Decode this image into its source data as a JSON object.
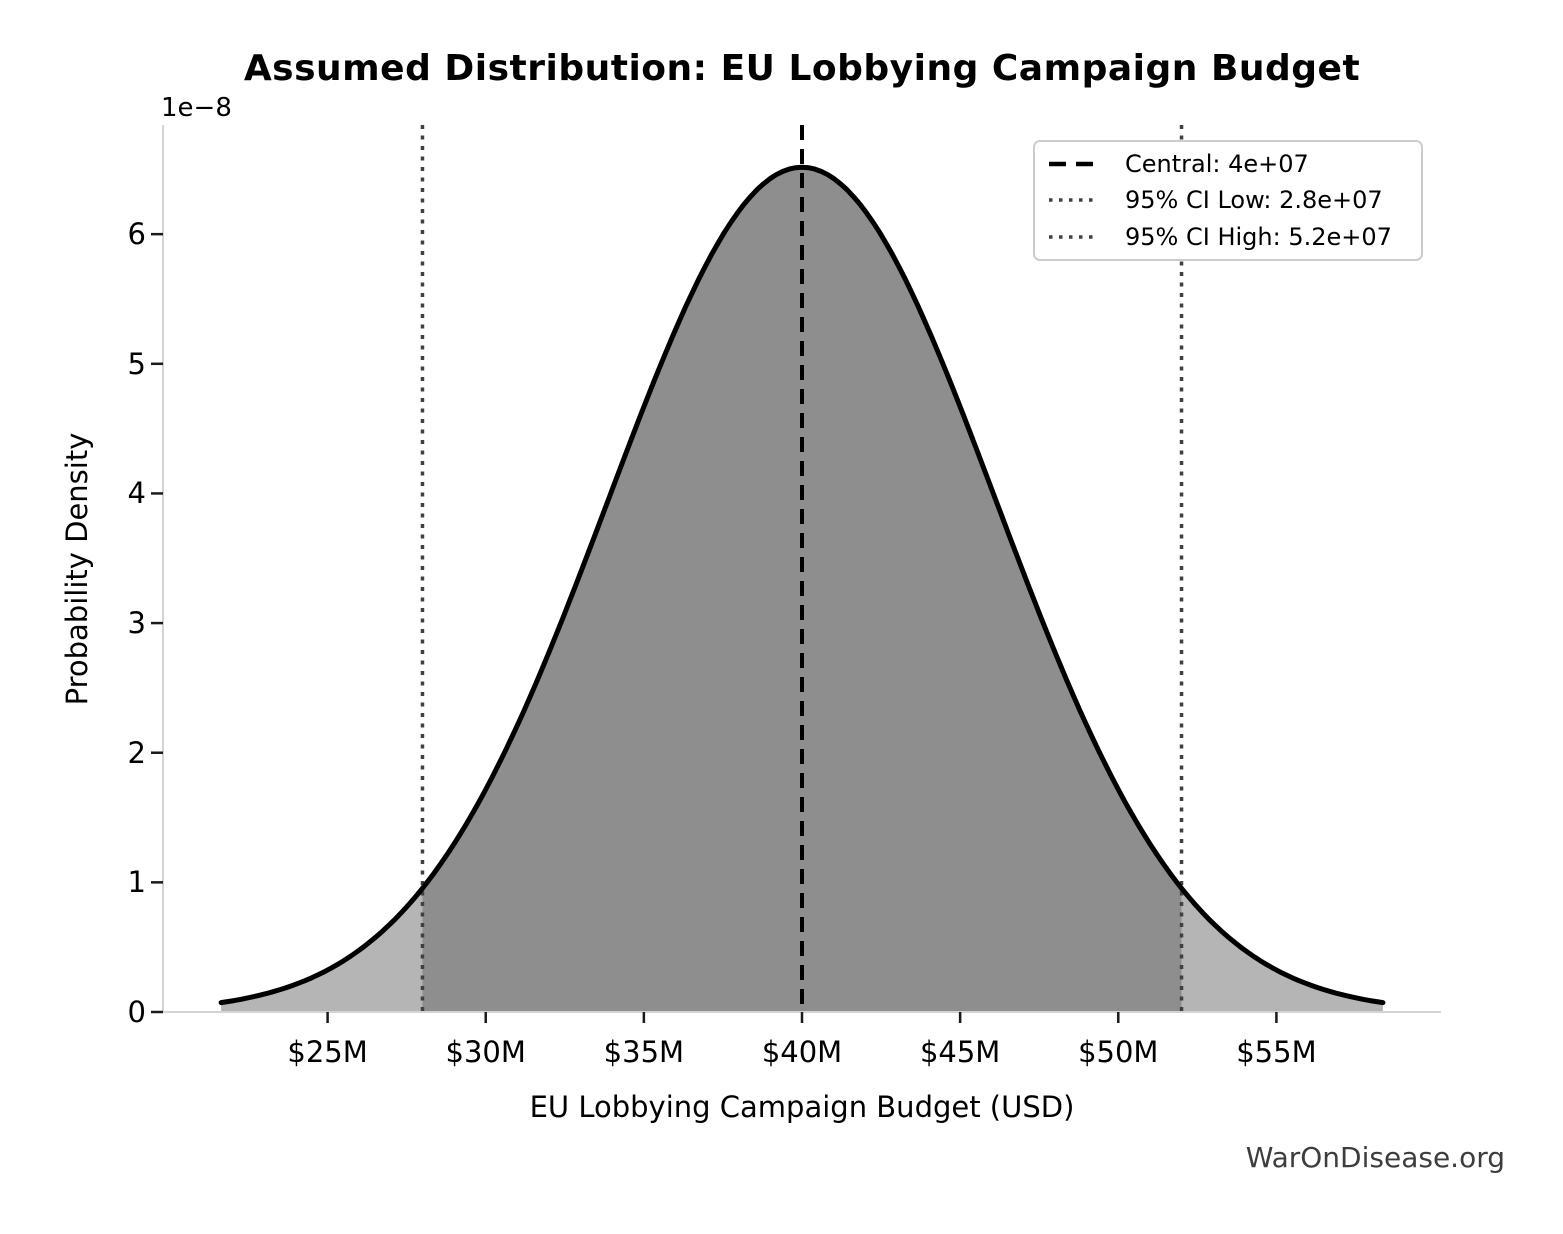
{
  "chart_data": {
    "type": "area",
    "subtype": "normal_distribution_pdf",
    "title": "Assumed Distribution: EU Lobbying Campaign Budget",
    "xlabel": "EU Lobbying Campaign Budget (USD)",
    "ylabel": "Probability Density",
    "y_offset_label": "1e−8",
    "watermark": "WarOnDisease.org",
    "grid": false,
    "legend_position": "upper right",
    "distribution": {
      "central": 40000000,
      "ci95_low": 28000000,
      "ci95_high": 52000000,
      "sigma": 6122449,
      "peak_density": 6.516e-08,
      "curve_x_min": 21632653,
      "curve_x_max": 58367347
    },
    "axes": {
      "xlim": [
        19795918,
        60204082
      ],
      "ylim": [
        0,
        6.842e-08
      ],
      "x_ticks": [
        {
          "value": 25000000,
          "label": "$25M"
        },
        {
          "value": 30000000,
          "label": "$30M"
        },
        {
          "value": 35000000,
          "label": "$35M"
        },
        {
          "value": 40000000,
          "label": "$40M"
        },
        {
          "value": 45000000,
          "label": "$45M"
        },
        {
          "value": 50000000,
          "label": "$50M"
        },
        {
          "value": 55000000,
          "label": "$55M"
        }
      ],
      "y_ticks": [
        {
          "value": 0,
          "label": "0"
        },
        {
          "value": 1e-08,
          "label": "1"
        },
        {
          "value": 2e-08,
          "label": "2"
        },
        {
          "value": 3e-08,
          "label": "3"
        },
        {
          "value": 4e-08,
          "label": "4"
        },
        {
          "value": 5e-08,
          "label": "5"
        },
        {
          "value": 6e-08,
          "label": "6"
        }
      ]
    },
    "legend": {
      "items": [
        {
          "label": "Central: 4e+07",
          "style": "dashed",
          "color": "#000000"
        },
        {
          "label": "95% CI Low: 2.8e+07",
          "style": "dotted",
          "color": "#404040"
        },
        {
          "label": "95% CI High: 5.2e+07",
          "style": "dotted",
          "color": "#404040"
        }
      ]
    },
    "colors": {
      "curve": "#000000",
      "fill_tails": "#b5b5b5",
      "fill_central": "#8e8e8e",
      "central_line": "#000000",
      "ci_line": "#404040",
      "spine": "#d4d4d4",
      "tick": "#1a1a1a",
      "text": "#000000",
      "watermark": "#3d3d3d"
    }
  }
}
